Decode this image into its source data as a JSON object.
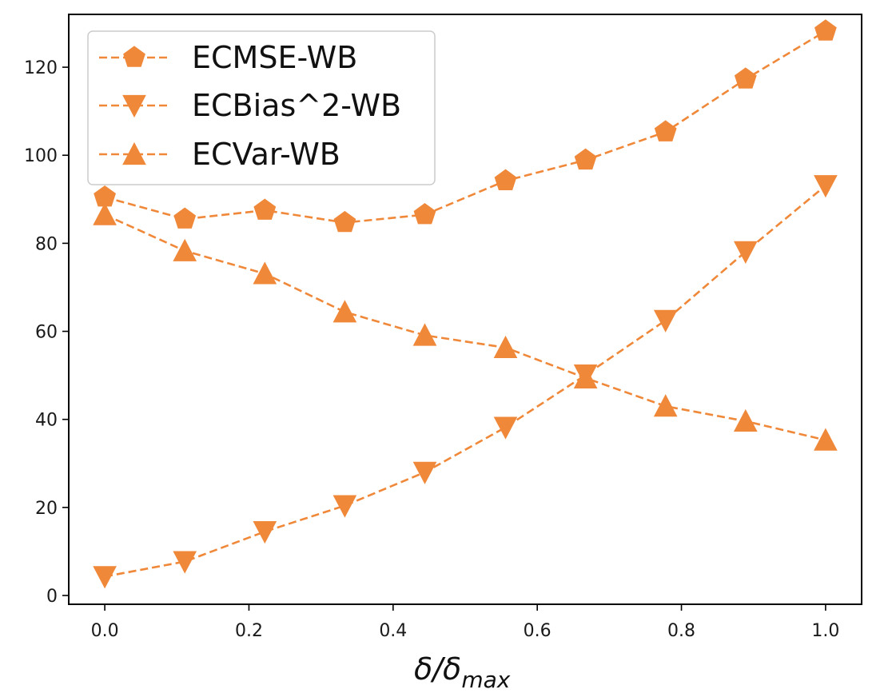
{
  "chart_data": {
    "type": "line",
    "title": "",
    "xlabel": "δ/δ",
    "xlabel_subscript": "max",
    "ylabel": "",
    "x": [
      0.0,
      0.111,
      0.222,
      0.333,
      0.444,
      0.556,
      0.667,
      0.778,
      0.889,
      1.0
    ],
    "xlim": [
      -0.05,
      1.05
    ],
    "ylim": [
      -2,
      132
    ],
    "xticks": [
      0.0,
      0.2,
      0.4,
      0.6,
      0.8,
      1.0
    ],
    "xtick_labels": [
      "0.0",
      "0.2",
      "0.4",
      "0.6",
      "0.8",
      "1.0"
    ],
    "yticks": [
      0,
      20,
      40,
      60,
      80,
      100,
      120
    ],
    "ytick_labels": [
      "0",
      "20",
      "40",
      "60",
      "80",
      "100",
      "120"
    ],
    "grid": false,
    "legend_position": "top-left",
    "series": [
      {
        "name": "ECMSE-WB",
        "marker": "pentagon",
        "color": "#f0883a",
        "values": [
          90.5,
          85.5,
          87.5,
          84.7,
          86.5,
          94.2,
          98.9,
          105.3,
          117.3,
          128.2
        ]
      },
      {
        "name": "ECBias^2-WB",
        "marker": "triangle-down",
        "color": "#f0883a",
        "values": [
          4.3,
          7.7,
          14.5,
          20.4,
          28.0,
          38.2,
          50.1,
          62.5,
          78.1,
          93.1
        ]
      },
      {
        "name": "ECVar-WB",
        "marker": "triangle-up",
        "color": "#f0883a",
        "values": [
          86.5,
          78.3,
          73.1,
          64.4,
          59.1,
          56.3,
          49.4,
          43.0,
          39.6,
          35.3
        ]
      }
    ]
  }
}
